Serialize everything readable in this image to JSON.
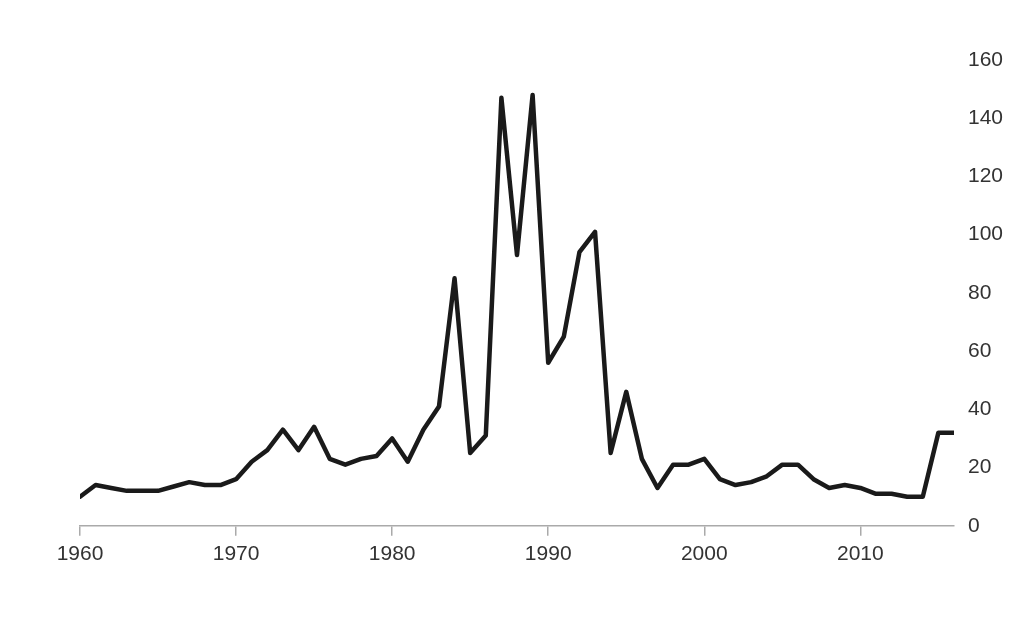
{
  "chart_data": {
    "type": "line",
    "x": [
      1960,
      1961,
      1962,
      1963,
      1964,
      1965,
      1966,
      1967,
      1968,
      1969,
      1970,
      1971,
      1972,
      1973,
      1974,
      1975,
      1976,
      1977,
      1978,
      1979,
      1980,
      1981,
      1982,
      1983,
      1984,
      1985,
      1986,
      1987,
      1988,
      1989,
      1990,
      1991,
      1992,
      1993,
      1994,
      1995,
      1996,
      1997,
      1998,
      1999,
      2000,
      2001,
      2002,
      2003,
      2004,
      2005,
      2006,
      2007,
      2008,
      2009,
      2010,
      2011,
      2012,
      2013,
      2014,
      2015,
      2016
    ],
    "series": [
      {
        "color": "#1a1a1a",
        "values": [
          10,
          14,
          13,
          12,
          12,
          12,
          13.5,
          15,
          14,
          14,
          16,
          22,
          26,
          33,
          26,
          34,
          23,
          21,
          23,
          24,
          30,
          22,
          33,
          41,
          85,
          25,
          31,
          147,
          93,
          148,
          56,
          65,
          94,
          101,
          25,
          46,
          23,
          13,
          21,
          21,
          23,
          16,
          14,
          15,
          17,
          21,
          21,
          16,
          13,
          14,
          13,
          11,
          11,
          10,
          10,
          32,
          32
        ]
      }
    ],
    "xlim": [
      1960,
      2016
    ],
    "xticks": [
      1960,
      1970,
      1980,
      1990,
      2000,
      2010
    ],
    "ylim": [
      0,
      160
    ],
    "yticks": [
      0,
      20,
      40,
      60,
      80,
      100,
      120,
      140,
      160
    ],
    "grid": false,
    "legend": false,
    "marker": "none",
    "line_style": "solid"
  }
}
